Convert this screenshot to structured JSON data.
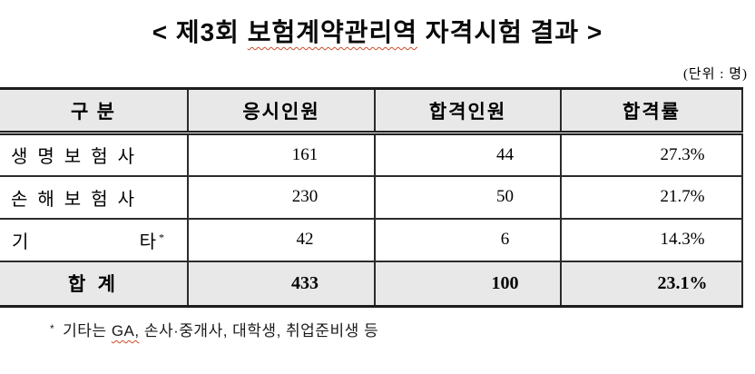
{
  "title": {
    "part1": "< 제3회 ",
    "part2_misspelled": "보험계약관리역",
    "part3": " 자격시험 결과 >"
  },
  "unit_note": "(단위 : 명)",
  "table": {
    "headers": [
      "구 분",
      "응시인원",
      "합격인원",
      "합격률"
    ],
    "rows": [
      {
        "category": "생 명 보 험 사",
        "applicants": "161",
        "passers": "44",
        "pass_rate": "27.3%"
      },
      {
        "category": "손 해 보 험 사",
        "applicants": "230",
        "passers": "50",
        "pass_rate": "21.7%"
      },
      {
        "category_left": "기",
        "category_right": "타",
        "category_marker": "*",
        "applicants": "42",
        "passers": "6",
        "pass_rate": "14.3%"
      }
    ],
    "total_row": {
      "category": "합 계",
      "applicants": "433",
      "passers": "100",
      "pass_rate": "23.1%"
    }
  },
  "footnote": {
    "marker": "*",
    "text_before": "기타는 ",
    "misspelled": "GA,",
    "text_after": " 손사·중개사, 대학생, 취업준비생 등"
  },
  "colors": {
    "header_bg": "#e8e8e8",
    "total_row_bg": "#e8e8e8",
    "border": "#2b2b2b",
    "spellcheck_underline": "#cc4b28",
    "text": "#000000"
  }
}
